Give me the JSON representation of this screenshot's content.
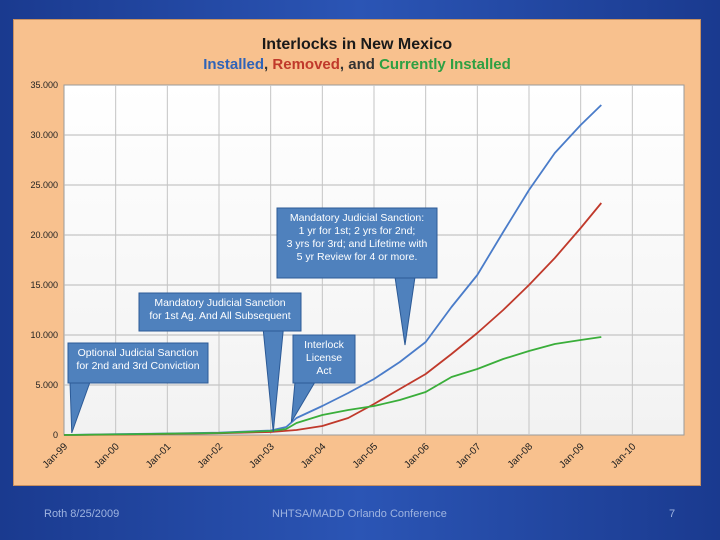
{
  "chart_data": {
    "type": "line",
    "title": "Interlocks in New Mexico",
    "subtitle": [
      {
        "text": "Installed",
        "color": "#2f63b8"
      },
      {
        "text": ", ",
        "color": "#333333"
      },
      {
        "text": "Removed",
        "color": "#c0392b"
      },
      {
        "text": ", and ",
        "color": "#333333"
      },
      {
        "text": "Currently Installed",
        "color": "#2ea043"
      }
    ],
    "xlabel": "",
    "ylabel": "",
    "ylim": [
      0,
      35000
    ],
    "y_ticks": [
      0,
      5000,
      10000,
      15000,
      20000,
      25000,
      30000,
      35000
    ],
    "y_tick_labels": [
      "0",
      "5.000",
      "10.000",
      "15.000",
      "20.000",
      "25.000",
      "30.000",
      "35.000"
    ],
    "x_tick_labels": [
      "Jan-99",
      "Jan-00",
      "Jan-01",
      "Jan-02",
      "Jan-03",
      "Jan-04",
      "Jan-05",
      "Jan-06",
      "Jan-07",
      "Jan-08",
      "Jan-09",
      "Jan-10"
    ],
    "xlim": [
      1999,
      2011
    ],
    "grid": true,
    "series": [
      {
        "name": "Installed",
        "color": "#4a7cc9",
        "x": [
          1999.0,
          2000.0,
          2001.0,
          2002.0,
          2003.0,
          2003.3,
          2003.5,
          2004.0,
          2004.5,
          2005.0,
          2005.5,
          2006.0,
          2006.5,
          2007.0,
          2007.5,
          2008.0,
          2008.5,
          2009.0,
          2009.4
        ],
        "values": [
          0,
          80,
          150,
          230,
          450,
          800,
          1700,
          2900,
          4200,
          5600,
          7300,
          9300,
          12800,
          16000,
          20300,
          24500,
          28200,
          31000,
          33000
        ]
      },
      {
        "name": "Removed",
        "color": "#c0392b",
        "x": [
          1999.0,
          2000.0,
          2001.0,
          2002.0,
          2003.0,
          2003.5,
          2004.0,
          2004.5,
          2005.0,
          2005.5,
          2006.0,
          2006.5,
          2007.0,
          2007.5,
          2008.0,
          2008.5,
          2009.0,
          2009.4
        ],
        "values": [
          0,
          40,
          100,
          180,
          300,
          500,
          900,
          1700,
          3100,
          4600,
          6100,
          8100,
          10200,
          12500,
          15000,
          17700,
          20700,
          23200
        ]
      },
      {
        "name": "Currently Installed",
        "color": "#3aae3a",
        "x": [
          1999.0,
          2000.0,
          2001.0,
          2002.0,
          2003.0,
          2003.3,
          2003.5,
          2004.0,
          2004.5,
          2005.0,
          2005.5,
          2006.0,
          2006.5,
          2007.0,
          2007.5,
          2008.0,
          2008.5,
          2009.0,
          2009.4
        ],
        "values": [
          0,
          60,
          130,
          200,
          400,
          600,
          1200,
          2000,
          2500,
          2900,
          3500,
          4300,
          5800,
          6600,
          7600,
          8400,
          9100,
          9500,
          9800
        ]
      }
    ],
    "annotations": [
      {
        "name": "callout-optional-sanction",
        "lines": [
          "Optional Judicial Sanction",
          "for 2nd and 3rd Conviction"
        ],
        "points_to": {
          "x": 1999.15,
          "y": 200
        }
      },
      {
        "name": "callout-mandatory-first",
        "lines": [
          "Mandatory Judicial Sanction",
          "for 1st Ag. And All Subsequent"
        ],
        "points_to": {
          "x": 2003.05,
          "y": 300
        }
      },
      {
        "name": "callout-interlock-license-act",
        "lines": [
          "Interlock",
          "License",
          "Act"
        ],
        "points_to": {
          "x": 2003.4,
          "y": 1300
        }
      },
      {
        "name": "callout-mandatory-schedule",
        "lines": [
          "Mandatory Judicial Sanction:",
          "1 yr for 1st; 2 yrs for 2nd;",
          "3 yrs for 3rd; and Lifetime with",
          "5 yr Review for 4 or more."
        ],
        "points_to": {
          "x": 2005.6,
          "y": 9000
        }
      }
    ]
  },
  "footer": {
    "left": "Roth 8/25/2009",
    "center": "NHTSA/MADD Orlando Conference",
    "right": "7"
  }
}
